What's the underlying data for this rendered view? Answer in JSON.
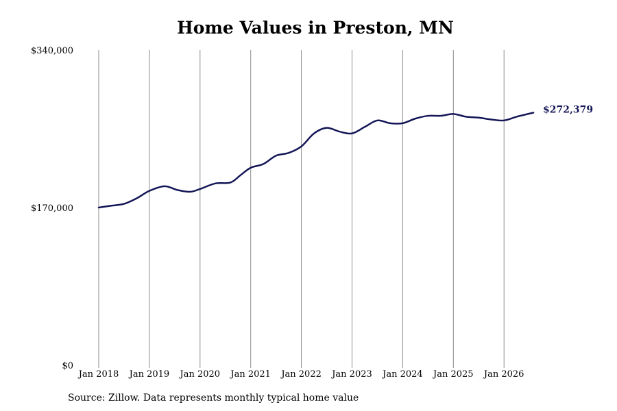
{
  "chart_data": {
    "type": "line",
    "title": "Home Values in Preston, MN",
    "source": "Source: Zillow. Data represents monthly typical home value",
    "y_ticks": [
      {
        "value": 340000,
        "label": "$340,000"
      },
      {
        "value": 170000,
        "label": "$170,000"
      },
      {
        "value": 0,
        "label": "$0"
      }
    ],
    "ylim": [
      0,
      340000
    ],
    "x_ticks": [
      {
        "value": 2018,
        "label": "Jan 2018"
      },
      {
        "value": 2019,
        "label": "Jan 2019"
      },
      {
        "value": 2020,
        "label": "Jan 2020"
      },
      {
        "value": 2021,
        "label": "Jan 2021"
      },
      {
        "value": 2022,
        "label": "Jan 2022"
      },
      {
        "value": 2023,
        "label": "Jan 2023"
      },
      {
        "value": 2024,
        "label": "Jan 2024"
      },
      {
        "value": 2025,
        "label": "Jan 2025"
      },
      {
        "value": 2026,
        "label": "Jan 2026"
      }
    ],
    "grid": "vertical",
    "line_color": "#141657",
    "end_label": "$272,379",
    "series": [
      {
        "x": [
          2018.0,
          2018.25,
          2018.5,
          2018.75,
          2019.0,
          2019.3,
          2019.55,
          2019.8,
          2020.0,
          2020.3,
          2020.6,
          2020.8,
          2021.0,
          2021.25,
          2021.5,
          2021.75,
          2022.0,
          2022.25,
          2022.5,
          2022.75,
          2023.0,
          2023.25,
          2023.5,
          2023.75,
          2024.0,
          2024.25,
          2024.5,
          2024.75,
          2025.0,
          2025.25,
          2025.5,
          2025.75,
          2026.0,
          2026.25,
          2026.58
        ],
        "y": [
          170000,
          172000,
          174000,
          180000,
          188000,
          193000,
          189000,
          187000,
          190000,
          196000,
          197000,
          205000,
          213000,
          217000,
          226000,
          229000,
          236000,
          250000,
          256000,
          252000,
          250000,
          257000,
          264000,
          261000,
          261000,
          266000,
          269000,
          269000,
          271000,
          268000,
          267000,
          265000,
          264000,
          268000,
          272379
        ]
      }
    ]
  }
}
